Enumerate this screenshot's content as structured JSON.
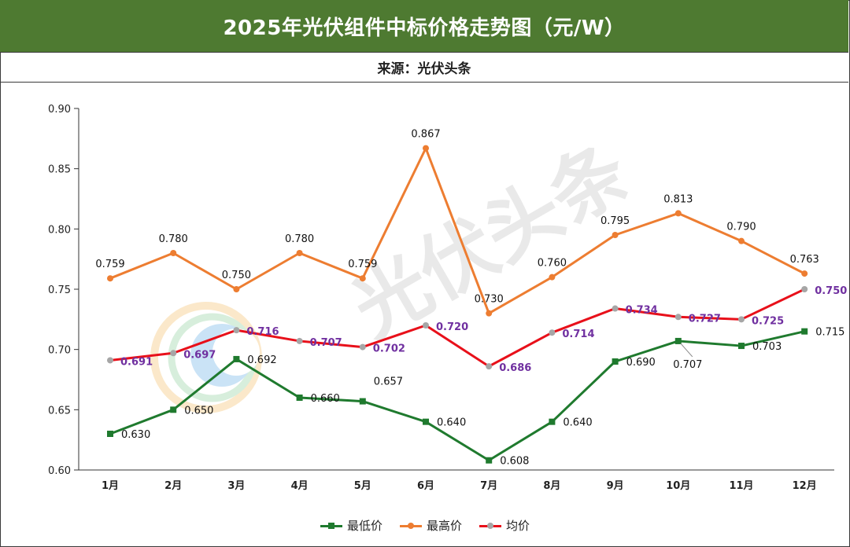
{
  "header": {
    "title": "2025年光伏组件中标价格走势图（元/W）",
    "source": "来源：光伏头条"
  },
  "watermark": {
    "text": "光伏头条"
  },
  "colors": {
    "title_bg": "#4e7a31",
    "min_line": "#1f7a2e",
    "max_line": "#ed7d31",
    "avg_line": "#e8101a",
    "avg_marker": "#a6a6a6",
    "avg_label": "#7030a0"
  },
  "chart_data": {
    "type": "line",
    "categories": [
      "1月",
      "2月",
      "3月",
      "4月",
      "5月",
      "6月",
      "7月",
      "8月",
      "9月",
      "10月",
      "11月",
      "12月"
    ],
    "ylim": [
      0.6,
      0.9
    ],
    "yticks": [
      "0.60",
      "0.65",
      "0.70",
      "0.75",
      "0.80",
      "0.85",
      "0.90"
    ],
    "series": [
      {
        "name": "最低价",
        "values": [
          0.63,
          0.65,
          0.692,
          0.66,
          0.657,
          0.64,
          0.608,
          0.64,
          0.69,
          0.707,
          0.703,
          0.715
        ],
        "labels": [
          "0.630",
          "0.650",
          "0.692",
          "0.660",
          "0.657",
          "0.640",
          "0.608",
          "0.640",
          "0.690",
          "0.707",
          "0.703",
          "0.715"
        ]
      },
      {
        "name": "最高价",
        "values": [
          0.759,
          0.78,
          0.75,
          0.78,
          0.759,
          0.867,
          0.73,
          0.76,
          0.795,
          0.813,
          0.79,
          0.763
        ],
        "labels": [
          "0.759",
          "0.780",
          "0.750",
          "0.780",
          "0.759",
          "0.867",
          "0.730",
          "0.760",
          "0.795",
          "0.813",
          "0.790",
          "0.763"
        ]
      },
      {
        "name": "均价",
        "values": [
          0.691,
          0.697,
          0.716,
          0.707,
          0.702,
          0.72,
          0.686,
          0.714,
          0.734,
          0.727,
          0.725,
          0.75
        ],
        "labels": [
          "0.691",
          "0.697",
          "0.716",
          "0.707",
          "0.702",
          "0.720",
          "0.686",
          "0.714",
          "0.734",
          "0.727",
          "0.725",
          "0.750"
        ]
      }
    ]
  }
}
